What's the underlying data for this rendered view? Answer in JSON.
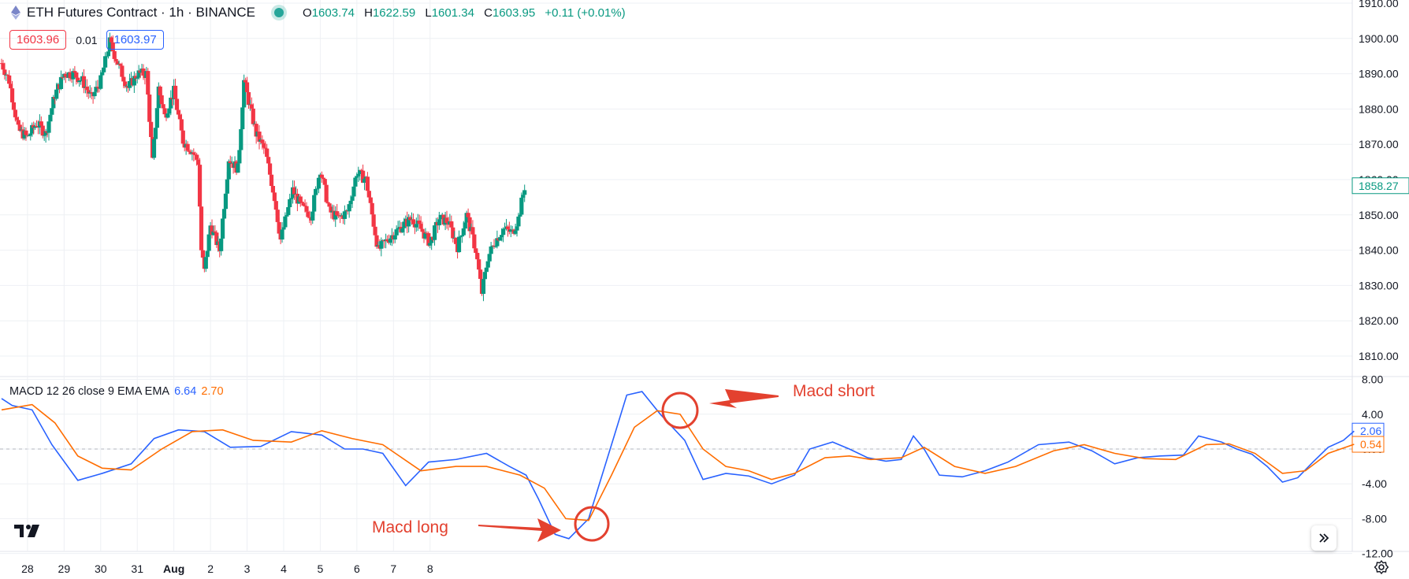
{
  "header": {
    "title": "ETH Futures Contract · 1h · BINANCE",
    "ohlc": {
      "o_label": "O",
      "o": "1603.74",
      "h_label": "H",
      "h": "1622.59",
      "l_label": "L",
      "l": "1601.34",
      "c_label": "C",
      "c": "1603.95",
      "change": "+0.11 (+0.01%)"
    },
    "sell_price": "1603.96",
    "spread": "0.01",
    "buy_price": "1603.97"
  },
  "colors": {
    "up": "#089981",
    "down": "#f23645",
    "macd": "#2962ff",
    "signal": "#ff6d00",
    "annotation": "#e3412f",
    "grid": "#eef0f4"
  },
  "macd_legend": {
    "label": "MACD 12 26 close 9 EMA EMA",
    "macd_value": "6.64",
    "signal_value": "2.70"
  },
  "annotations": {
    "short": "Macd short",
    "long": "Macd long"
  },
  "icons": {
    "logo": "tradingview-logo-icon",
    "scroll": "scroll-to-realtime-icon",
    "settings": "gear-icon",
    "symbol": "ethereum-icon"
  },
  "chart_data": [
    {
      "type": "candlestick",
      "series": [
        {
          "name": "ETH Futures Contract"
        }
      ],
      "y_ticks": [
        "1910.00",
        "1900.00",
        "1890.00",
        "1880.00",
        "1870.00",
        "1860.00",
        "1850.00",
        "1840.00",
        "1830.00",
        "1820.00",
        "1810.00"
      ],
      "ylim": [
        1803,
        1912
      ],
      "last_price": "1858.27",
      "x_ticks": [
        "28",
        "29",
        "30",
        "31",
        "Aug",
        "2",
        "3",
        "4",
        "5",
        "6",
        "7",
        "8"
      ],
      "x_tick_dates": [
        "Jul 28",
        "Jul 29",
        "Jul 30",
        "Jul 31",
        "Aug 1",
        "Aug 2",
        "Aug 3",
        "Aug 4",
        "Aug 5",
        "Aug 6",
        "Aug 7",
        "Aug 8"
      ],
      "close_path": [
        [
          "Jul 27 07:00",
          1893
        ],
        [
          "Jul 27 12:00",
          1888
        ],
        [
          "Jul 27 18:00",
          1874
        ],
        [
          "Jul 28 00:00",
          1872
        ],
        [
          "Jul 28 06:00",
          1876
        ],
        [
          "Jul 28 12:00",
          1873
        ],
        [
          "Jul 28 18:00",
          1884
        ],
        [
          "Jul 29 00:00",
          1890
        ],
        [
          "Jul 29 06:00",
          1890
        ],
        [
          "Jul 29 12:00",
          1888
        ],
        [
          "Jul 29 18:00",
          1883
        ],
        [
          "Jul 30 00:00",
          1888
        ],
        [
          "Jul 30 06:00",
          1899
        ],
        [
          "Jul 30 12:00",
          1892
        ],
        [
          "Jul 30 18:00",
          1886
        ],
        [
          "Jul 31 00:00",
          1890
        ],
        [
          "Jul 31 06:00",
          1890
        ],
        [
          "Jul 31 10:00",
          1865
        ],
        [
          "Jul 31 14:00",
          1886
        ],
        [
          "Jul 31 18:00",
          1878
        ],
        [
          "Aug 1 00:00",
          1885
        ],
        [
          "Aug 1 06:00",
          1871
        ],
        [
          "Aug 1 12:00",
          1868
        ],
        [
          "Aug 1 16:00",
          1865
        ],
        [
          "Aug 1 18:00",
          1840
        ],
        [
          "Aug 1 20:00",
          1834
        ],
        [
          "Aug 2 00:00",
          1847
        ],
        [
          "Aug 2 06:00",
          1840
        ],
        [
          "Aug 2 12:00",
          1866
        ],
        [
          "Aug 2 18:00",
          1863
        ],
        [
          "Aug 2 22:00",
          1888
        ],
        [
          "Aug 3 06:00",
          1873
        ],
        [
          "Aug 3 12:00",
          1868
        ],
        [
          "Aug 3 18:00",
          1855
        ],
        [
          "Aug 3 22:00",
          1843
        ],
        [
          "Aug 4 06:00",
          1857
        ],
        [
          "Aug 4 12:00",
          1852
        ],
        [
          "Aug 4 18:00",
          1850
        ],
        [
          "Aug 5 00:00",
          1863
        ],
        [
          "Aug 5 06:00",
          1851
        ],
        [
          "Aug 5 12:00",
          1849
        ],
        [
          "Aug 5 18:00",
          1851
        ],
        [
          "Aug 6 00:00",
          1862
        ],
        [
          "Aug 6 06:00",
          1860
        ],
        [
          "Aug 6 10:00",
          1850
        ],
        [
          "Aug 6 14:00",
          1840
        ],
        [
          "Aug 6 20:00",
          1843
        ],
        [
          "Aug 7 06:00",
          1847
        ],
        [
          "Aug 7 12:00",
          1849
        ],
        [
          "Aug 7 18:00",
          1846
        ],
        [
          "Aug 8 00:00",
          1842
        ],
        [
          "Aug 8 06:00",
          1849
        ],
        [
          "Aug 8 12:00",
          1848
        ],
        [
          "Aug 8 18:00",
          1841
        ],
        [
          "Aug 9 00:00",
          1850
        ],
        [
          "Aug 9 06:00",
          1840
        ],
        [
          "Aug 9 10:00",
          1828
        ],
        [
          "Aug 9 14:00",
          1838
        ],
        [
          "Aug 9 18:00",
          1842
        ],
        [
          "Aug 10 00:00",
          1846
        ],
        [
          "Aug 10 06:00",
          1845
        ],
        [
          "Aug 10 10:00",
          1849
        ],
        [
          "Aug 10 14:00",
          1858
        ]
      ]
    },
    {
      "type": "line",
      "series": [
        {
          "name": "MACD",
          "values": [
            [
              0,
              5.8
            ],
            [
              7,
              5.0
            ],
            [
              20,
              4.5
            ],
            [
              33,
              0.5
            ],
            [
              50,
              -3.6
            ],
            [
              66,
              -2.8
            ],
            [
              85,
              -1.7
            ],
            [
              100,
              1.2
            ],
            [
              116,
              2.2
            ],
            [
              133,
              2.0
            ],
            [
              150,
              0.2
            ],
            [
              170,
              0.3
            ],
            [
              190,
              2.0
            ],
            [
              210,
              1.6
            ],
            [
              225,
              0.0
            ],
            [
              237,
              0.0
            ],
            [
              250,
              -0.5
            ],
            [
              265,
              -4.2
            ],
            [
              280,
              -1.5
            ],
            [
              298,
              -1.2
            ],
            [
              318,
              -0.5
            ],
            [
              333,
              -2.0
            ],
            [
              344,
              -3.0
            ],
            [
              352,
              -5.7
            ],
            [
              363,
              -9.8
            ],
            [
              372,
              -10.3
            ],
            [
              385,
              -8.0
            ],
            [
              400,
              0.5
            ],
            [
              410,
              6.2
            ],
            [
              420,
              6.6
            ],
            [
              432,
              4.0
            ],
            [
              448,
              1.0
            ],
            [
              460,
              -3.5
            ],
            [
              475,
              -2.8
            ],
            [
              490,
              -3.1
            ],
            [
              505,
              -4.0
            ],
            [
              520,
              -3.0
            ],
            [
              530,
              0.0
            ],
            [
              545,
              0.8
            ],
            [
              556,
              0.0
            ],
            [
              568,
              -1.0
            ],
            [
              580,
              -1.4
            ],
            [
              590,
              -1.2
            ],
            [
              598,
              1.5
            ],
            [
              605,
              0.0
            ],
            [
              615,
              -3.0
            ],
            [
              630,
              -3.2
            ],
            [
              645,
              -2.5
            ],
            [
              660,
              -1.5
            ],
            [
              680,
              0.5
            ],
            [
              700,
              0.8
            ],
            [
              715,
              -0.2
            ],
            [
              730,
              -1.7
            ],
            [
              745,
              -1.0
            ],
            [
              760,
              -0.8
            ],
            [
              775,
              -0.7
            ],
            [
              785,
              1.5
            ],
            [
              800,
              0.8
            ],
            [
              810,
              0.0
            ],
            [
              820,
              -0.6
            ],
            [
              830,
              -2.0
            ],
            [
              840,
              -3.8
            ],
            [
              850,
              -3.3
            ],
            [
              860,
              -1.5
            ],
            [
              870,
              0.2
            ],
            [
              880,
              1.0
            ],
            [
              887,
              2.06
            ]
          ]
        },
        {
          "name": "Signal",
          "values": [
            [
              0,
              4.5
            ],
            [
              20,
              5.1
            ],
            [
              35,
              3.0
            ],
            [
              50,
              -0.8
            ],
            [
              66,
              -2.2
            ],
            [
              85,
              -2.4
            ],
            [
              105,
              0.0
            ],
            [
              125,
              2.0
            ],
            [
              145,
              2.2
            ],
            [
              165,
              1.0
            ],
            [
              190,
              0.8
            ],
            [
              210,
              2.1
            ],
            [
              230,
              1.2
            ],
            [
              250,
              0.5
            ],
            [
              275,
              -2.5
            ],
            [
              298,
              -2.0
            ],
            [
              318,
              -2.0
            ],
            [
              340,
              -3.0
            ],
            [
              356,
              -4.5
            ],
            [
              370,
              -8.0
            ],
            [
              385,
              -8.2
            ],
            [
              400,
              -3.0
            ],
            [
              415,
              2.5
            ],
            [
              430,
              4.4
            ],
            [
              445,
              4.0
            ],
            [
              460,
              0.0
            ],
            [
              475,
              -2.0
            ],
            [
              490,
              -2.5
            ],
            [
              505,
              -3.5
            ],
            [
              520,
              -2.8
            ],
            [
              540,
              -1.0
            ],
            [
              556,
              -0.8
            ],
            [
              570,
              -1.2
            ],
            [
              590,
              -1.0
            ],
            [
              605,
              0.2
            ],
            [
              625,
              -2.0
            ],
            [
              645,
              -2.8
            ],
            [
              665,
              -2.0
            ],
            [
              690,
              -0.2
            ],
            [
              710,
              0.5
            ],
            [
              730,
              -0.5
            ],
            [
              750,
              -1.1
            ],
            [
              770,
              -1.2
            ],
            [
              790,
              0.5
            ],
            [
              805,
              0.6
            ],
            [
              822,
              -0.5
            ],
            [
              840,
              -2.8
            ],
            [
              855,
              -2.5
            ],
            [
              870,
              -0.5
            ],
            [
              887,
              0.54
            ]
          ]
        }
      ],
      "x_unit": "hours since Jul 27 07:00",
      "y_ticks": [
        "8.00",
        "4.00",
        "0.00",
        "-4.00",
        "-8.00",
        "-12.00"
      ],
      "ylim": [
        -12,
        8
      ],
      "last_values": {
        "macd": "2.06",
        "signal": "0.54"
      }
    }
  ]
}
